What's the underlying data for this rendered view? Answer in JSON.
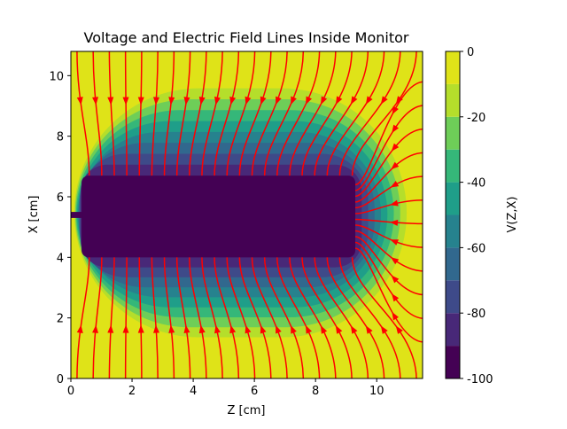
{
  "chart_data": {
    "type": "contour",
    "title": "Voltage and Electric Field Lines Inside Monitor",
    "x_label": "Z [cm]",
    "y_label": "X [cm]",
    "xlim": [
      0,
      11.5
    ],
    "xticks": [
      0,
      2,
      4,
      6,
      8,
      10
    ],
    "ylim": [
      0,
      10.8
    ],
    "yticks": [
      0,
      2,
      4,
      6,
      8,
      10
    ],
    "colorbar_label": "V(Z,X)",
    "levels": [
      -100,
      -90,
      -80,
      -70,
      -60,
      -50,
      -40,
      -30,
      -20,
      -10,
      0
    ],
    "colorbar_ticks": [
      -100,
      -80,
      -60,
      -40,
      -20,
      0
    ],
    "colors": [
      "#440154",
      "#482878",
      "#3e4a89",
      "#31688e",
      "#26828e",
      "#1f9e89",
      "#35b779",
      "#6ece58",
      "#b5de2b",
      "#dfe318"
    ],
    "streamline_color": "#ff0000"
  }
}
